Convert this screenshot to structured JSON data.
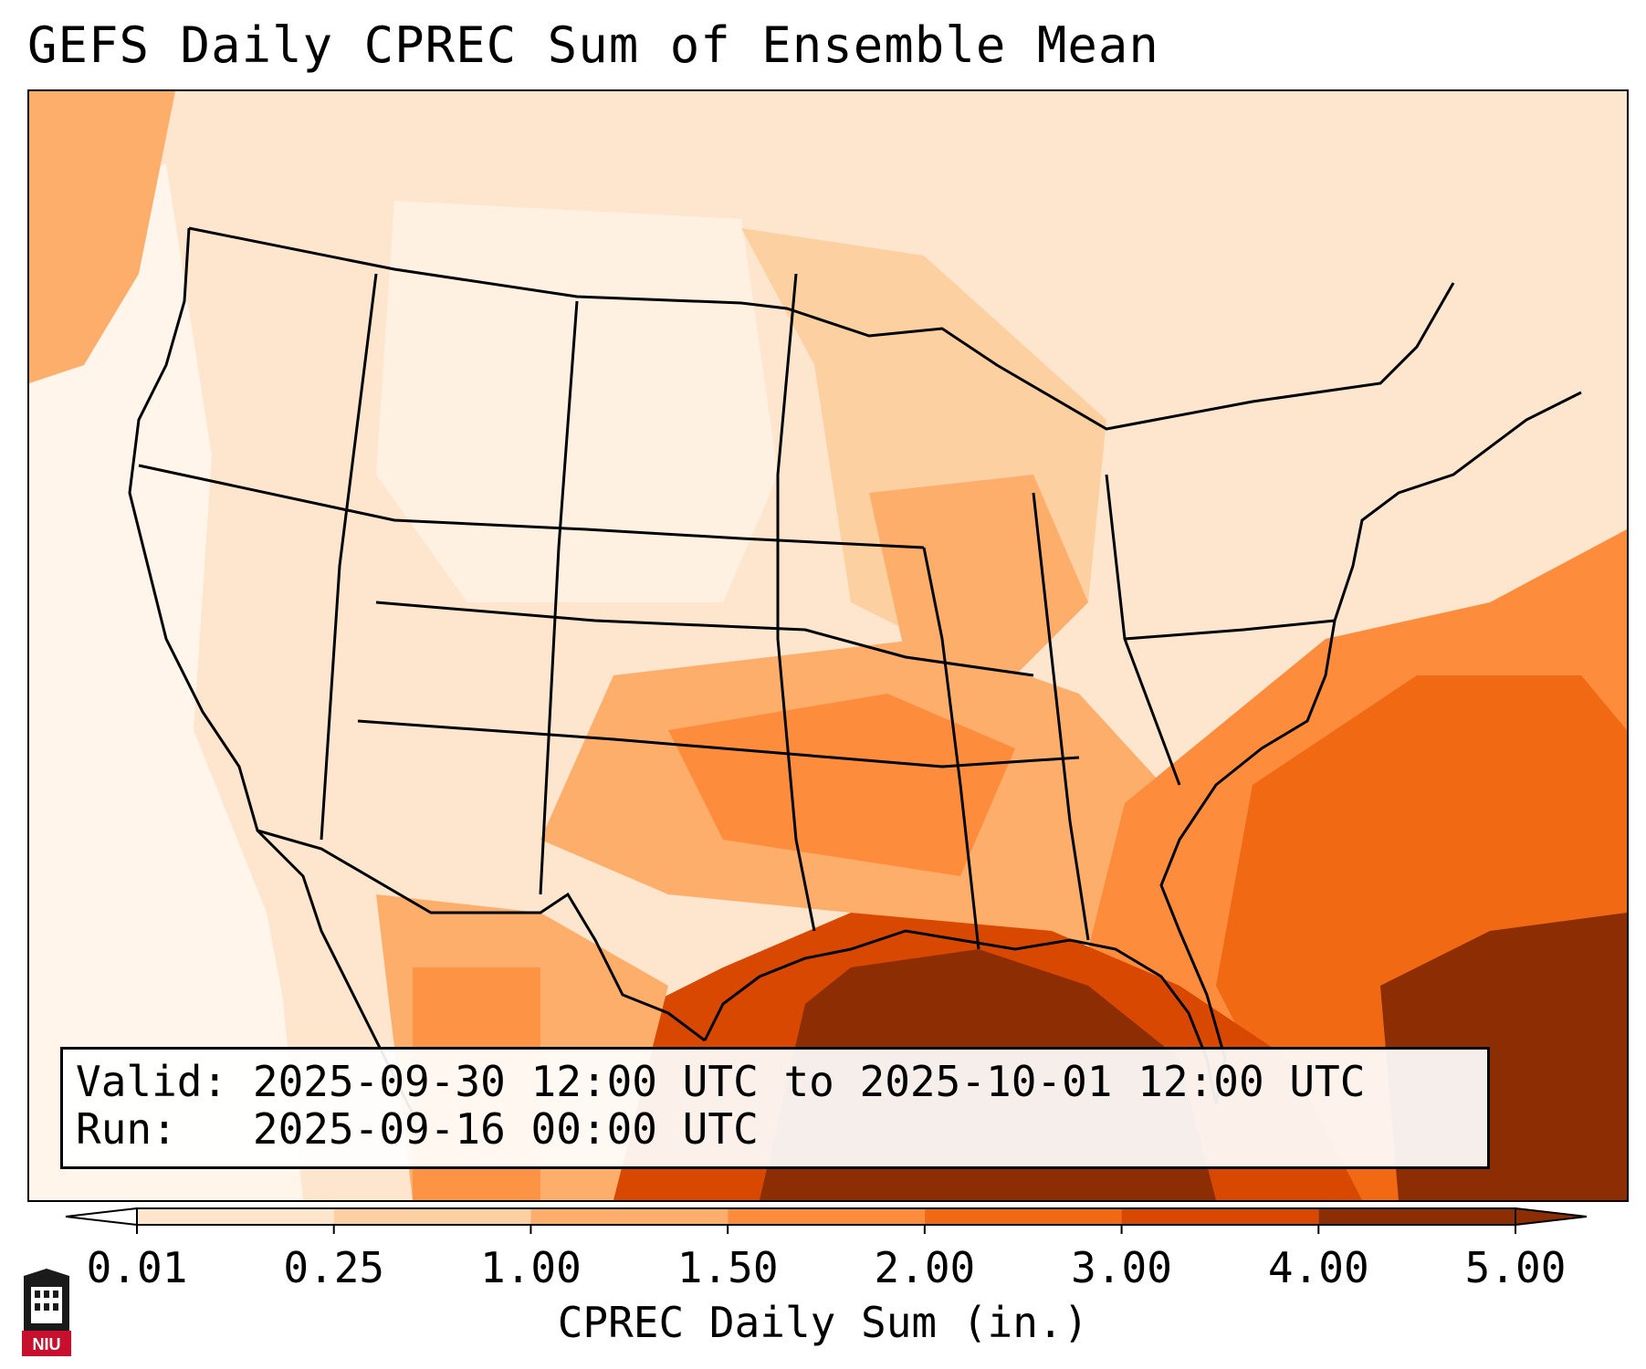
{
  "title": "GEFS Daily CPREC Sum of Ensemble Mean",
  "info": {
    "valid_label": "Valid:",
    "valid_value": "2025-09-30 12:00 UTC to 2025-10-01 12:00 UTC",
    "run_label": "Run:",
    "run_value": "2025-09-16 00:00 UTC"
  },
  "colorbar": {
    "label": "CPREC Daily Sum (in.)",
    "ticks": [
      "0.01",
      "0.25",
      "1.00",
      "1.50",
      "2.00",
      "3.00",
      "4.00",
      "5.00"
    ],
    "colors": [
      "#fff5eb",
      "#fee6ce",
      "#fdd0a2",
      "#fdae6b",
      "#fd8d3c",
      "#f16913",
      "#d94801",
      "#8c2d04"
    ]
  },
  "logo": {
    "text": "NIU"
  }
}
